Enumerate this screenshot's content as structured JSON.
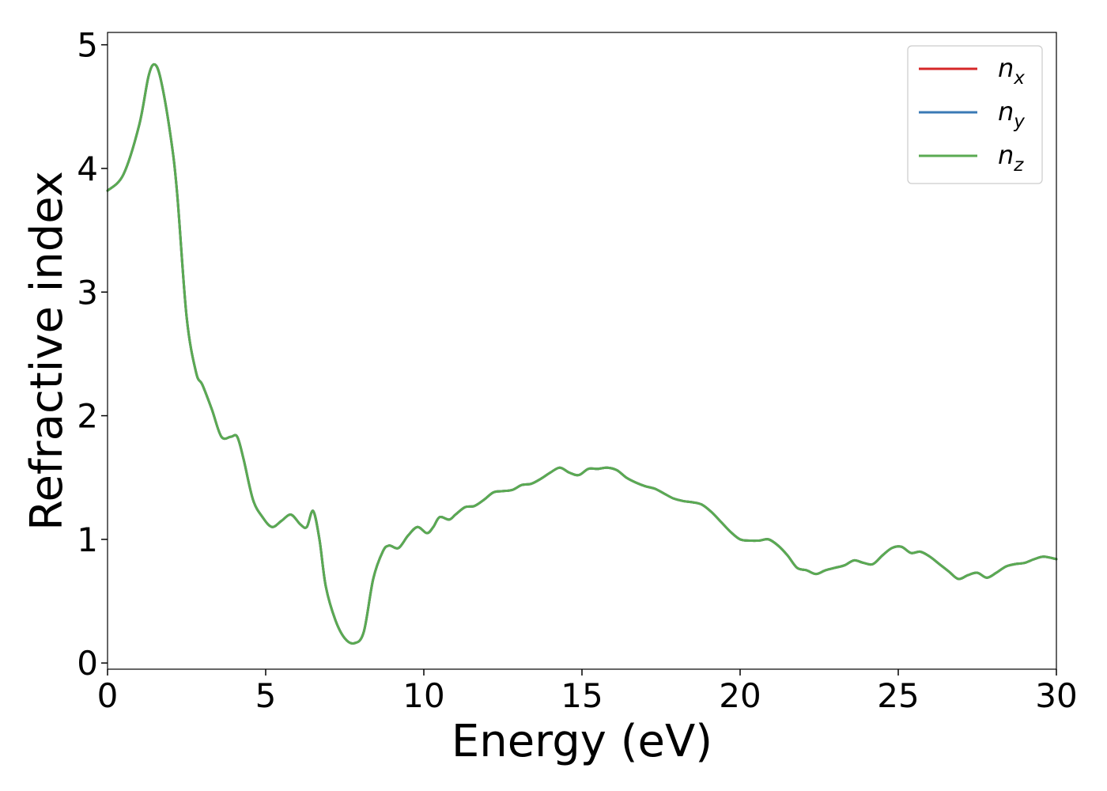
{
  "chart_data": {
    "type": "line",
    "title": "",
    "xlabel": "Energy (eV)",
    "ylabel": "Refractive index",
    "xlim": [
      0,
      30
    ],
    "ylim": [
      -0.05,
      5.1
    ],
    "xticks": [
      0,
      5,
      10,
      15,
      20,
      25,
      30
    ],
    "yticks": [
      0,
      1,
      2,
      3,
      4,
      5
    ],
    "xtick_labels": [
      "0",
      "5",
      "10",
      "15",
      "20",
      "25",
      "30"
    ],
    "ytick_labels": [
      "0",
      "1",
      "2",
      "3",
      "4",
      "5"
    ],
    "grid": false,
    "legend_position": "top-right",
    "x": [
      0,
      0.5,
      1.0,
      1.3,
      1.5,
      1.7,
      2.0,
      2.2,
      2.5,
      2.8,
      3.0,
      3.3,
      3.6,
      3.9,
      4.1,
      4.3,
      4.6,
      4.9,
      5.2,
      5.5,
      5.8,
      6.1,
      6.3,
      6.5,
      6.7,
      6.9,
      7.2,
      7.5,
      7.8,
      8.1,
      8.4,
      8.7,
      8.9,
      9.2,
      9.5,
      9.8,
      10.1,
      10.3,
      10.5,
      10.8,
      11.0,
      11.3,
      11.6,
      11.9,
      12.2,
      12.5,
      12.8,
      13.1,
      13.4,
      13.7,
      14.0,
      14.3,
      14.6,
      14.9,
      15.2,
      15.5,
      15.8,
      16.1,
      16.4,
      16.7,
      17.0,
      17.3,
      17.6,
      17.9,
      18.2,
      18.5,
      18.8,
      19.1,
      19.4,
      19.7,
      20.0,
      20.3,
      20.6,
      20.9,
      21.2,
      21.5,
      21.8,
      22.1,
      22.4,
      22.7,
      23.0,
      23.3,
      23.6,
      23.9,
      24.2,
      24.5,
      24.8,
      25.1,
      25.4,
      25.7,
      26.0,
      26.3,
      26.6,
      26.9,
      27.2,
      27.5,
      27.8,
      28.1,
      28.4,
      28.7,
      29.0,
      29.3,
      29.6,
      30.0
    ],
    "series": [
      {
        "name": "n_x",
        "color": "#d62728",
        "values": [
          3.82,
          3.95,
          4.35,
          4.75,
          4.84,
          4.7,
          4.25,
          3.8,
          2.8,
          2.35,
          2.25,
          2.05,
          1.83,
          1.83,
          1.83,
          1.65,
          1.32,
          1.18,
          1.1,
          1.15,
          1.2,
          1.12,
          1.1,
          1.23,
          1.0,
          0.62,
          0.35,
          0.2,
          0.16,
          0.25,
          0.68,
          0.9,
          0.95,
          0.93,
          1.03,
          1.1,
          1.05,
          1.1,
          1.18,
          1.16,
          1.2,
          1.26,
          1.27,
          1.32,
          1.38,
          1.39,
          1.4,
          1.44,
          1.45,
          1.49,
          1.54,
          1.58,
          1.54,
          1.52,
          1.57,
          1.57,
          1.58,
          1.56,
          1.5,
          1.46,
          1.43,
          1.41,
          1.37,
          1.33,
          1.31,
          1.3,
          1.28,
          1.22,
          1.14,
          1.06,
          1.0,
          0.99,
          0.99,
          1.0,
          0.95,
          0.87,
          0.77,
          0.75,
          0.72,
          0.75,
          0.77,
          0.79,
          0.83,
          0.81,
          0.8,
          0.87,
          0.93,
          0.94,
          0.89,
          0.9,
          0.86,
          0.8,
          0.74,
          0.68,
          0.71,
          0.73,
          0.69,
          0.73,
          0.78,
          0.8,
          0.81,
          0.84,
          0.86,
          0.84
        ]
      },
      {
        "name": "n_y",
        "color": "#3a7ab5",
        "values": [
          3.82,
          3.95,
          4.35,
          4.75,
          4.84,
          4.7,
          4.25,
          3.8,
          2.8,
          2.35,
          2.25,
          2.05,
          1.83,
          1.83,
          1.83,
          1.65,
          1.32,
          1.18,
          1.1,
          1.15,
          1.2,
          1.12,
          1.1,
          1.23,
          1.0,
          0.62,
          0.35,
          0.2,
          0.16,
          0.25,
          0.68,
          0.9,
          0.95,
          0.93,
          1.03,
          1.1,
          1.05,
          1.1,
          1.18,
          1.16,
          1.2,
          1.26,
          1.27,
          1.32,
          1.38,
          1.39,
          1.4,
          1.44,
          1.45,
          1.49,
          1.54,
          1.58,
          1.54,
          1.52,
          1.57,
          1.57,
          1.58,
          1.56,
          1.5,
          1.46,
          1.43,
          1.41,
          1.37,
          1.33,
          1.31,
          1.3,
          1.28,
          1.22,
          1.14,
          1.06,
          1.0,
          0.99,
          0.99,
          1.0,
          0.95,
          0.87,
          0.77,
          0.75,
          0.72,
          0.75,
          0.77,
          0.79,
          0.83,
          0.81,
          0.8,
          0.87,
          0.93,
          0.94,
          0.89,
          0.9,
          0.86,
          0.8,
          0.74,
          0.68,
          0.71,
          0.73,
          0.69,
          0.73,
          0.78,
          0.8,
          0.81,
          0.84,
          0.86,
          0.84
        ]
      },
      {
        "name": "n_z",
        "color": "#5aaa52",
        "values": [
          3.82,
          3.95,
          4.35,
          4.75,
          4.84,
          4.7,
          4.25,
          3.8,
          2.8,
          2.35,
          2.25,
          2.05,
          1.83,
          1.83,
          1.83,
          1.65,
          1.32,
          1.18,
          1.1,
          1.15,
          1.2,
          1.12,
          1.1,
          1.23,
          1.0,
          0.62,
          0.35,
          0.2,
          0.16,
          0.25,
          0.68,
          0.9,
          0.95,
          0.93,
          1.03,
          1.1,
          1.05,
          1.1,
          1.18,
          1.16,
          1.2,
          1.26,
          1.27,
          1.32,
          1.38,
          1.39,
          1.4,
          1.44,
          1.45,
          1.49,
          1.54,
          1.58,
          1.54,
          1.52,
          1.57,
          1.57,
          1.58,
          1.56,
          1.5,
          1.46,
          1.43,
          1.41,
          1.37,
          1.33,
          1.31,
          1.3,
          1.28,
          1.22,
          1.14,
          1.06,
          1.0,
          0.99,
          0.99,
          1.0,
          0.95,
          0.87,
          0.77,
          0.75,
          0.72,
          0.75,
          0.77,
          0.79,
          0.83,
          0.81,
          0.8,
          0.87,
          0.93,
          0.94,
          0.89,
          0.9,
          0.86,
          0.8,
          0.74,
          0.68,
          0.71,
          0.73,
          0.69,
          0.73,
          0.78,
          0.8,
          0.81,
          0.84,
          0.86,
          0.84
        ]
      }
    ],
    "legend": [
      {
        "base": "n",
        "sub": "x"
      },
      {
        "base": "n",
        "sub": "y"
      },
      {
        "base": "n",
        "sub": "z"
      }
    ]
  }
}
